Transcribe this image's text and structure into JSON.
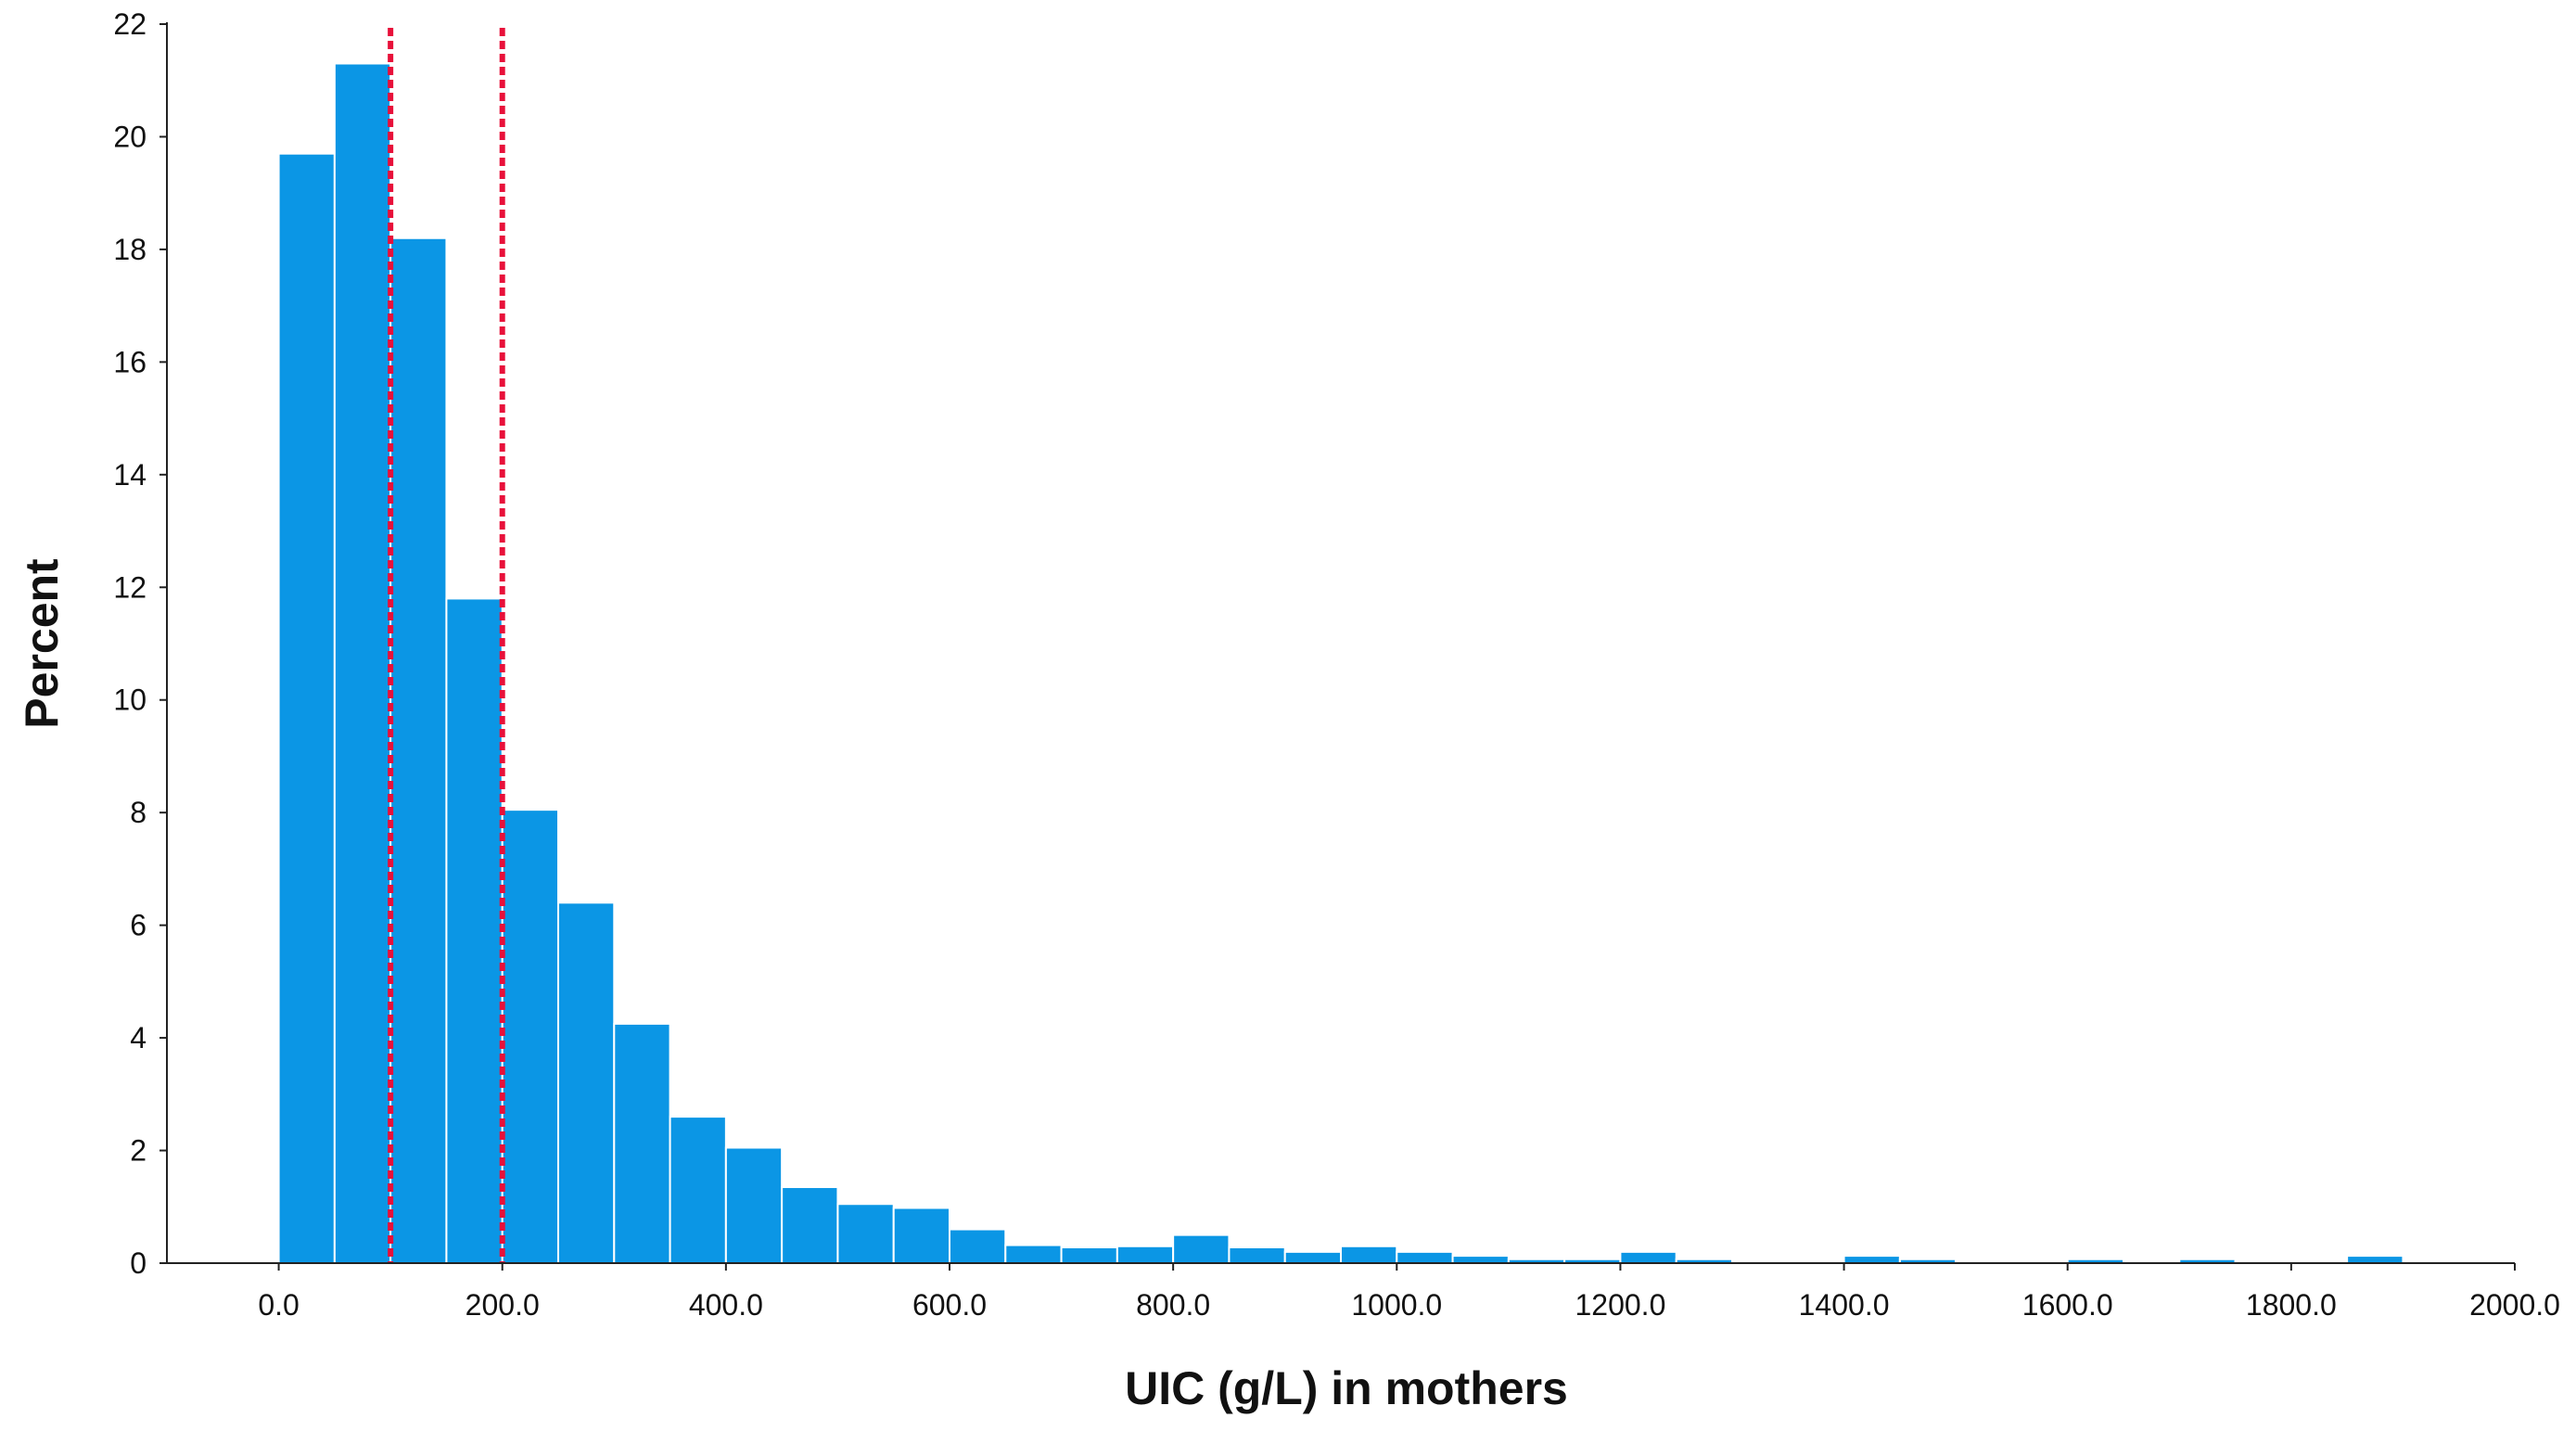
{
  "chart_data": {
    "type": "bar",
    "subtype": "histogram",
    "xlabel": "UIC (g/L) in mothers",
    "ylabel": "Percent",
    "xlim": [
      -100,
      2000
    ],
    "ylim": [
      0,
      22
    ],
    "x_ticks": [
      0,
      200,
      400,
      600,
      800,
      1000,
      1200,
      1400,
      1600,
      1800,
      2000
    ],
    "x_tick_labels": [
      "0.0",
      "200.0",
      "400.0",
      "600.0",
      "800.0",
      "1000.0",
      "1200.0",
      "1400.0",
      "1600.0",
      "1800.0",
      "2000.0"
    ],
    "y_ticks": [
      0,
      2,
      4,
      6,
      8,
      10,
      12,
      14,
      16,
      18,
      20,
      22
    ],
    "y_tick_labels": [
      "0",
      "2",
      "4",
      "6",
      "8",
      "10",
      "12",
      "14",
      "16",
      "18",
      "20",
      "22"
    ],
    "bin_width": 50,
    "bins": [
      {
        "start": 0,
        "value": 19.7
      },
      {
        "start": 50,
        "value": 21.3
      },
      {
        "start": 100,
        "value": 18.2
      },
      {
        "start": 150,
        "value": 11.8
      },
      {
        "start": 200,
        "value": 8.05
      },
      {
        "start": 250,
        "value": 6.4
      },
      {
        "start": 300,
        "value": 4.25
      },
      {
        "start": 350,
        "value": 2.6
      },
      {
        "start": 400,
        "value": 2.05
      },
      {
        "start": 450,
        "value": 1.35
      },
      {
        "start": 500,
        "value": 1.05
      },
      {
        "start": 550,
        "value": 0.98
      },
      {
        "start": 600,
        "value": 0.6
      },
      {
        "start": 650,
        "value": 0.32
      },
      {
        "start": 700,
        "value": 0.28
      },
      {
        "start": 750,
        "value": 0.3
      },
      {
        "start": 800,
        "value": 0.5
      },
      {
        "start": 850,
        "value": 0.28
      },
      {
        "start": 900,
        "value": 0.2
      },
      {
        "start": 950,
        "value": 0.3
      },
      {
        "start": 1000,
        "value": 0.2
      },
      {
        "start": 1050,
        "value": 0.13
      },
      {
        "start": 1100,
        "value": 0.07
      },
      {
        "start": 1150,
        "value": 0.07
      },
      {
        "start": 1200,
        "value": 0.2
      },
      {
        "start": 1250,
        "value": 0.07
      },
      {
        "start": 1300,
        "value": 0.03
      },
      {
        "start": 1350,
        "value": 0.03
      },
      {
        "start": 1400,
        "value": 0.13
      },
      {
        "start": 1450,
        "value": 0.07
      },
      {
        "start": 1500,
        "value": 0.03
      },
      {
        "start": 1550,
        "value": 0.03
      },
      {
        "start": 1600,
        "value": 0.07
      },
      {
        "start": 1650,
        "value": 0.03
      },
      {
        "start": 1700,
        "value": 0.07
      },
      {
        "start": 1750,
        "value": 0.03
      },
      {
        "start": 1800,
        "value": 0.03
      },
      {
        "start": 1850,
        "value": 0.13
      }
    ],
    "reference_lines": [
      {
        "x": 100,
        "style": "dotted",
        "color": "#e8103a"
      },
      {
        "x": 200,
        "style": "dotted",
        "color": "#e8103a"
      }
    ],
    "bar_color": "#0b96e5",
    "bar_edge_color": "#ffffff",
    "grid": false,
    "legend": "none"
  }
}
